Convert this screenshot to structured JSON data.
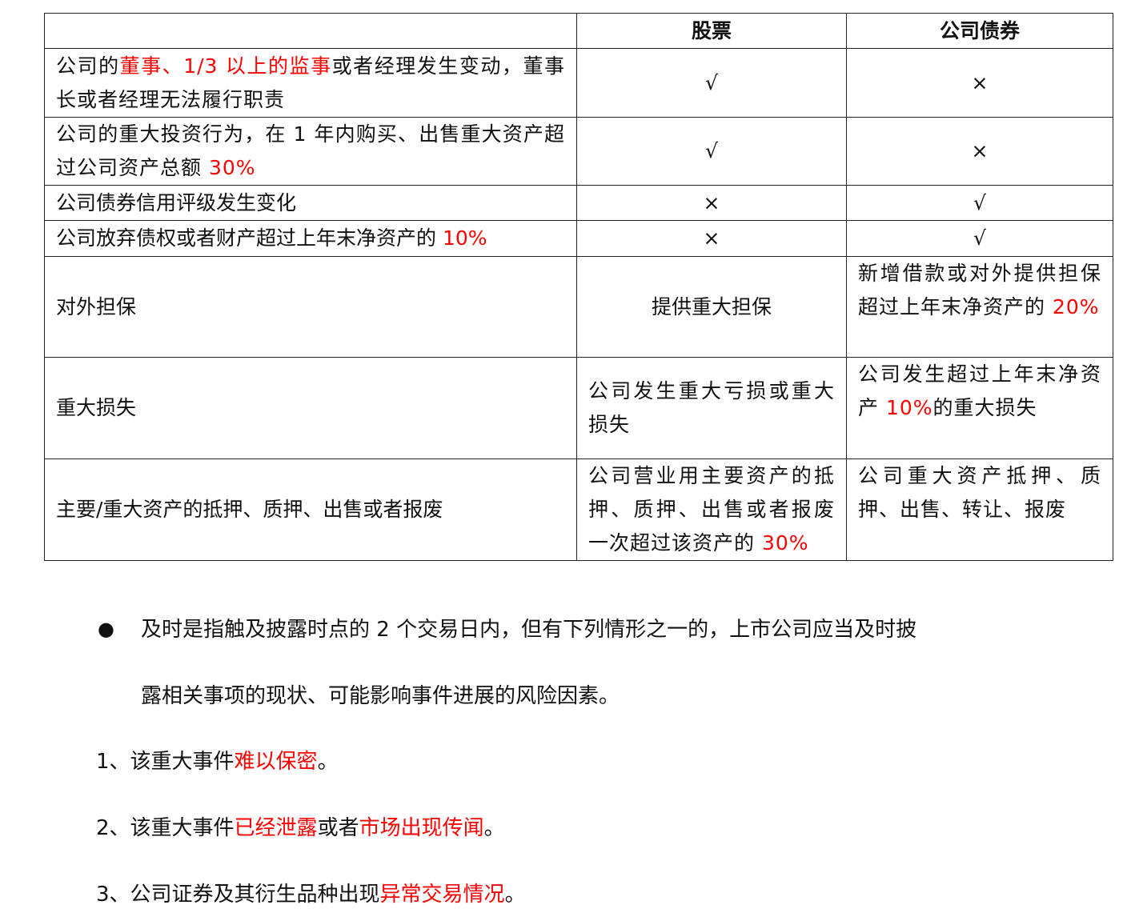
{
  "table": {
    "headers": [
      "",
      "股票",
      "公司债券"
    ],
    "rows": [
      {
        "item": [
          {
            "t": "公司的"
          },
          {
            "t": "董事、1/3 以上的监事",
            "red": true
          },
          {
            "t": "或者经理发生变动，董事长或者经理无法履行职责"
          }
        ],
        "stock": [
          {
            "t": "√"
          }
        ],
        "bond": [
          {
            "t": "×"
          }
        ]
      },
      {
        "item": [
          {
            "t": "公司的重大投资行为，在 1 年内购买、出售重大资产超过公司资产总额 "
          },
          {
            "t": "30%",
            "red": true
          }
        ],
        "stock": [
          {
            "t": "√"
          }
        ],
        "bond": [
          {
            "t": "×"
          }
        ]
      },
      {
        "item": [
          {
            "t": "公司债券信用评级发生变化"
          }
        ],
        "stock": [
          {
            "t": "×"
          }
        ],
        "bond": [
          {
            "t": "√"
          }
        ]
      },
      {
        "item": [
          {
            "t": "公司放弃债权或者财产超过上年末净资产的 "
          },
          {
            "t": "10%",
            "red": true
          }
        ],
        "stock": [
          {
            "t": "×"
          }
        ],
        "bond": [
          {
            "t": "√"
          }
        ]
      },
      {
        "item": [
          {
            "t": "对外担保"
          }
        ],
        "stock": [
          {
            "t": "提供重大担保"
          }
        ],
        "bond": [
          {
            "t": "新增借款或对外提供担保超过上年末净资产的 "
          },
          {
            "t": "20%",
            "red": true
          }
        ]
      },
      {
        "item": [
          {
            "t": "重大损失"
          }
        ],
        "stock": [
          {
            "t": "公司发生重大亏损或重大损失"
          }
        ],
        "bond": [
          {
            "t": "公司发生超过上年末净资产 "
          },
          {
            "t": "10%",
            "red": true
          },
          {
            "t": "的重大损失"
          }
        ]
      },
      {
        "item": [
          {
            "t": "主要/重大资产的抵押、质押、出售或者报废"
          }
        ],
        "stock": [
          {
            "t": "公司营业用主要资产的抵押、质押、出售或者报废一次超过该资产的 "
          },
          {
            "t": "30%",
            "red": true
          }
        ],
        "bond": [
          {
            "t": "公司重大资产抵押、质押、出售、转让、报废"
          }
        ]
      }
    ]
  },
  "bullet": {
    "symbol": "●",
    "line1": [
      {
        "t": "及时是指触及披露时点的 2 个交易日内，但有下列情形之一的，上市公司应当及时披"
      }
    ],
    "line2": [
      {
        "t": "露相关事项的现状、可能影响事件进展的风险因素。"
      }
    ]
  },
  "items": [
    [
      {
        "t": "1、该重大事件"
      },
      {
        "t": "难以保密",
        "red": true
      },
      {
        "t": "。"
      }
    ],
    [
      {
        "t": "2、该重大事件"
      },
      {
        "t": "已经泄露",
        "red": true
      },
      {
        "t": "或者"
      },
      {
        "t": "市场出现传闻",
        "red": true
      },
      {
        "t": "。"
      }
    ],
    [
      {
        "t": "3、公司证券及其衍生品种出现"
      },
      {
        "t": "异常交易情况",
        "red": true
      },
      {
        "t": "。"
      }
    ]
  ],
  "colors": {
    "emphasis": "#ff0000",
    "text": "#111111"
  }
}
